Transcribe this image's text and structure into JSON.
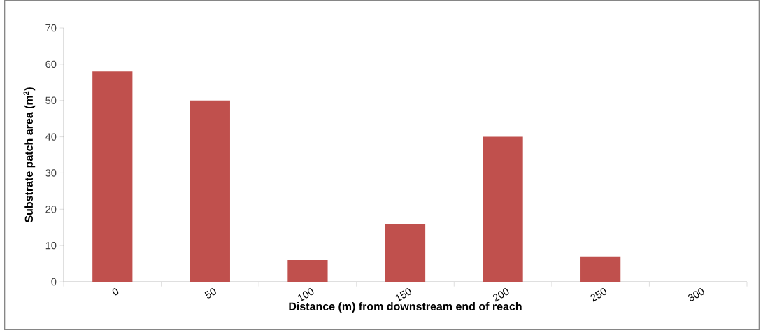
{
  "chart_data": {
    "type": "bar",
    "categories": [
      "0",
      "50",
      "100",
      "150",
      "200",
      "250",
      "300"
    ],
    "values": [
      58,
      50,
      6,
      16,
      40,
      7,
      0
    ],
    "color": "#c0504d",
    "xlabel": "Distance (m) from downstream end of reach",
    "ylabel": "Substrate patch area (m$^{2}$)",
    "ylim": [
      0,
      70
    ],
    "yticks": [
      0,
      10,
      20,
      30,
      40,
      50,
      60,
      70
    ]
  }
}
